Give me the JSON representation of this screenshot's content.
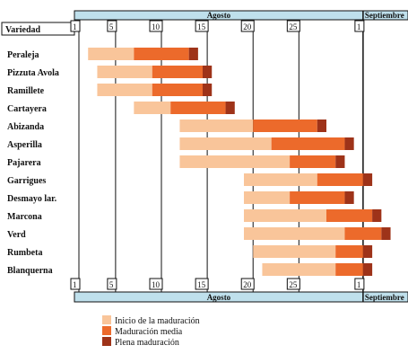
{
  "chart_data": {
    "type": "gantt",
    "title": "",
    "row_header": "Variedad",
    "month_labels": {
      "august": "Agosto",
      "september": "Septiembre"
    },
    "x_unit": "day",
    "x_range": [
      -1,
      36
    ],
    "ticks": [
      {
        "day": 1,
        "label": "1"
      },
      {
        "day": 5,
        "label": "5"
      },
      {
        "day": 10,
        "label": "10"
      },
      {
        "day": 15,
        "label": "15"
      },
      {
        "day": 20,
        "label": "20"
      },
      {
        "day": 25,
        "label": "25"
      },
      {
        "day": 32,
        "label": "1"
      }
    ],
    "september_start_day": 32,
    "phases": [
      {
        "name": "Inicio de la maduración",
        "color": "#f9c59a"
      },
      {
        "name": "Maduración media",
        "color": "#ec6a2b"
      },
      {
        "name": "Plena maduración",
        "color": "#9e3319"
      }
    ],
    "varieties": [
      {
        "name": "Peraleja",
        "inicio": [
          2,
          7
        ],
        "media": [
          7,
          13
        ],
        "plena": [
          13,
          14
        ]
      },
      {
        "name": "Pizzuta Avola",
        "inicio": [
          3,
          9
        ],
        "media": [
          9,
          14.5
        ],
        "plena": [
          14.5,
          15.5
        ]
      },
      {
        "name": "Ramillete",
        "inicio": [
          3,
          9
        ],
        "media": [
          9,
          14.5
        ],
        "plena": [
          14.5,
          15.5
        ]
      },
      {
        "name": "Cartayera",
        "inicio": [
          7,
          11
        ],
        "media": [
          11,
          17
        ],
        "plena": [
          17,
          18
        ]
      },
      {
        "name": "Abizanda",
        "inicio": [
          12,
          20
        ],
        "media": [
          20,
          27
        ],
        "plena": [
          27,
          28
        ]
      },
      {
        "name": "Asperilla",
        "inicio": [
          12,
          22
        ],
        "media": [
          22,
          30
        ],
        "plena": [
          30,
          31
        ]
      },
      {
        "name": "Pajarera",
        "inicio": [
          12,
          24
        ],
        "media": [
          24,
          29
        ],
        "plena": [
          29,
          30
        ]
      },
      {
        "name": "Garrigues",
        "inicio": [
          19,
          27
        ],
        "media": [
          27,
          32
        ],
        "plena": [
          32,
          33
        ]
      },
      {
        "name": "Desmayo lar.",
        "inicio": [
          19,
          24
        ],
        "media": [
          24,
          30
        ],
        "plena": [
          30,
          31
        ]
      },
      {
        "name": "Marcona",
        "inicio": [
          19,
          28
        ],
        "media": [
          28,
          33
        ],
        "plena": [
          33,
          34
        ]
      },
      {
        "name": "Verd",
        "inicio": [
          19,
          30
        ],
        "media": [
          30,
          34
        ],
        "plena": [
          34,
          35
        ]
      },
      {
        "name": "Rumbeta",
        "inicio": [
          20,
          29
        ],
        "media": [
          29,
          32
        ],
        "plena": [
          32,
          33
        ]
      },
      {
        "name": "Blanquerna",
        "inicio": [
          21,
          29
        ],
        "media": [
          29,
          32
        ],
        "plena": [
          32,
          33
        ]
      }
    ]
  }
}
